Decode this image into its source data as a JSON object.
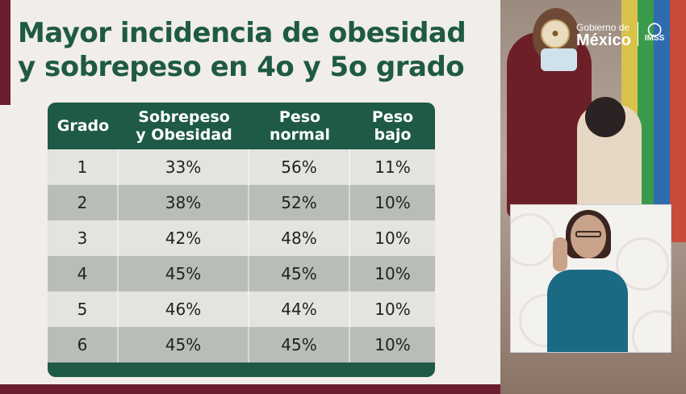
{
  "slide": {
    "title_line1": "Mayor incidencia de obesidad",
    "title_line2": "y sobrepeso en 4o y 5o grado",
    "colors": {
      "title": "#1e5a45",
      "accent_bar": "#6b1f2e",
      "table_header": "#1e5a45"
    }
  },
  "table": {
    "headers": [
      "Grado",
      "Sobrepeso y Obesidad",
      "Peso normal",
      "Peso bajo"
    ],
    "header_lines": [
      [
        "Grado"
      ],
      [
        "Sobrepeso",
        "y Obesidad"
      ],
      [
        "Peso",
        "normal"
      ],
      [
        "Peso",
        "bajo"
      ]
    ],
    "rows": [
      [
        "1",
        "33%",
        "56%",
        "11%"
      ],
      [
        "2",
        "38%",
        "52%",
        "10%"
      ],
      [
        "3",
        "42%",
        "48%",
        "10%"
      ],
      [
        "4",
        "45%",
        "45%",
        "10%"
      ],
      [
        "5",
        "46%",
        "44%",
        "10%"
      ],
      [
        "6",
        "45%",
        "45%",
        "10%"
      ]
    ]
  },
  "video": {
    "logo_small": "Gobierno de",
    "logo_big": "México",
    "logo_secondary": "IMSS"
  }
}
